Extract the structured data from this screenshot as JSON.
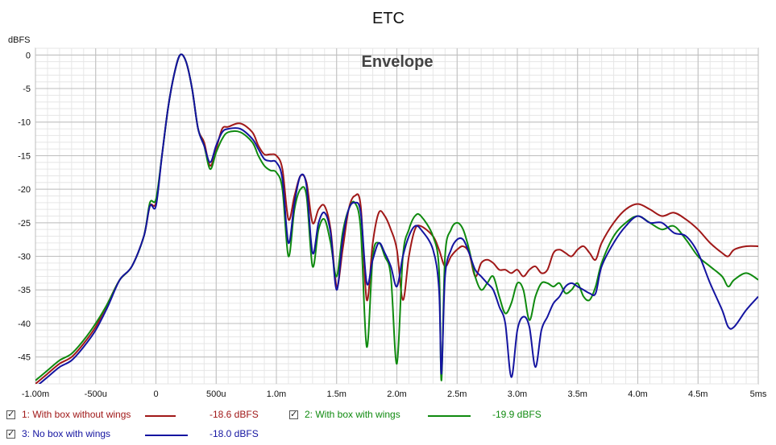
{
  "chart_data": {
    "type": "line",
    "title": "ETC",
    "annotation": "Envelope",
    "ylabel": "dBFS",
    "ylim": [
      -49,
      1
    ],
    "xlim": [
      -1.0,
      5.0
    ],
    "grid": true,
    "legend_position": "bottom",
    "x_ticks": [
      -1.0,
      -0.5,
      0,
      0.5,
      1.0,
      1.5,
      2.0,
      2.5,
      3.0,
      3.5,
      4.0,
      4.5,
      5.0
    ],
    "x_tick_labels": [
      "-1.00m",
      "-500u",
      "0",
      "500u",
      "1.0m",
      "1.5m",
      "2.0m",
      "2.5m",
      "3.0m",
      "3.5m",
      "4.0m",
      "4.5m",
      "5ms"
    ],
    "y_ticks": [
      0,
      -5,
      -10,
      -15,
      -20,
      -25,
      -30,
      -35,
      -40,
      -45
    ],
    "y_tick_labels": [
      "0",
      "-5",
      "-10",
      "-15",
      "-20",
      "-25",
      "-30",
      "-35",
      "-40",
      "-45"
    ],
    "series": [
      {
        "name": "1: With box without wings",
        "value_label": "-18.6 dBFS",
        "color": "#a01818",
        "points": [
          [
            -1.0,
            -49
          ],
          [
            -0.9,
            -47.5
          ],
          [
            -0.8,
            -46
          ],
          [
            -0.7,
            -45
          ],
          [
            -0.6,
            -43
          ],
          [
            -0.5,
            -40.5
          ],
          [
            -0.4,
            -37
          ],
          [
            -0.3,
            -33.5
          ],
          [
            -0.2,
            -31.5
          ],
          [
            -0.1,
            -27
          ],
          [
            -0.05,
            -22.5
          ],
          [
            0.0,
            -22
          ],
          [
            0.05,
            -15
          ],
          [
            0.1,
            -8
          ],
          [
            0.15,
            -3
          ],
          [
            0.2,
            0
          ],
          [
            0.25,
            -1
          ],
          [
            0.3,
            -5
          ],
          [
            0.35,
            -11
          ],
          [
            0.4,
            -13
          ],
          [
            0.45,
            -16.5
          ],
          [
            0.5,
            -14
          ],
          [
            0.55,
            -11
          ],
          [
            0.6,
            -10.7
          ],
          [
            0.7,
            -10.2
          ],
          [
            0.8,
            -11.5
          ],
          [
            0.85,
            -13.5
          ],
          [
            0.9,
            -14.8
          ],
          [
            0.95,
            -14.8
          ],
          [
            1.0,
            -15
          ],
          [
            1.05,
            -17
          ],
          [
            1.1,
            -24.5
          ],
          [
            1.15,
            -21
          ],
          [
            1.2,
            -18
          ],
          [
            1.25,
            -19
          ],
          [
            1.3,
            -25
          ],
          [
            1.35,
            -23
          ],
          [
            1.4,
            -22.5
          ],
          [
            1.45,
            -26
          ],
          [
            1.5,
            -34.5
          ],
          [
            1.55,
            -29
          ],
          [
            1.6,
            -23
          ],
          [
            1.65,
            -21
          ],
          [
            1.7,
            -22.5
          ],
          [
            1.75,
            -36.5
          ],
          [
            1.8,
            -28
          ],
          [
            1.85,
            -23.5
          ],
          [
            1.9,
            -24
          ],
          [
            1.95,
            -26
          ],
          [
            2.0,
            -29
          ],
          [
            2.05,
            -36.5
          ],
          [
            2.1,
            -30
          ],
          [
            2.15,
            -26
          ],
          [
            2.2,
            -25.5
          ],
          [
            2.3,
            -27
          ],
          [
            2.35,
            -29
          ],
          [
            2.4,
            -31.5
          ],
          [
            2.45,
            -30
          ],
          [
            2.5,
            -29
          ],
          [
            2.55,
            -28.5
          ],
          [
            2.6,
            -29.5
          ],
          [
            2.65,
            -33
          ],
          [
            2.7,
            -31
          ],
          [
            2.75,
            -30.5
          ],
          [
            2.8,
            -31
          ],
          [
            2.85,
            -32
          ],
          [
            2.9,
            -32
          ],
          [
            2.95,
            -32.5
          ],
          [
            3.0,
            -32
          ],
          [
            3.05,
            -33
          ],
          [
            3.1,
            -32
          ],
          [
            3.15,
            -31.5
          ],
          [
            3.2,
            -32.5
          ],
          [
            3.25,
            -32
          ],
          [
            3.3,
            -29.5
          ],
          [
            3.35,
            -29
          ],
          [
            3.4,
            -29.5
          ],
          [
            3.45,
            -30
          ],
          [
            3.5,
            -29
          ],
          [
            3.55,
            -28.5
          ],
          [
            3.6,
            -29.5
          ],
          [
            3.65,
            -30.5
          ],
          [
            3.7,
            -28
          ],
          [
            3.8,
            -25
          ],
          [
            3.9,
            -23
          ],
          [
            4.0,
            -22.2
          ],
          [
            4.1,
            -23
          ],
          [
            4.2,
            -24
          ],
          [
            4.3,
            -23.5
          ],
          [
            4.4,
            -24.5
          ],
          [
            4.5,
            -26
          ],
          [
            4.6,
            -28
          ],
          [
            4.7,
            -29.5
          ],
          [
            4.75,
            -30
          ],
          [
            4.8,
            -29
          ],
          [
            4.9,
            -28.5
          ],
          [
            5.0,
            -28.5
          ]
        ]
      },
      {
        "name": "2: With box with wings",
        "value_label": "-19.9 dBFS",
        "color": "#0f8a0f",
        "points": [
          [
            -1.0,
            -48.5
          ],
          [
            -0.9,
            -47
          ],
          [
            -0.8,
            -45.5
          ],
          [
            -0.7,
            -44.5
          ],
          [
            -0.6,
            -42.5
          ],
          [
            -0.5,
            -40
          ],
          [
            -0.4,
            -37
          ],
          [
            -0.3,
            -33.5
          ],
          [
            -0.2,
            -31.5
          ],
          [
            -0.1,
            -27
          ],
          [
            -0.05,
            -22
          ],
          [
            0.0,
            -21.5
          ],
          [
            0.05,
            -15
          ],
          [
            0.1,
            -8
          ],
          [
            0.15,
            -3
          ],
          [
            0.2,
            0
          ],
          [
            0.25,
            -1
          ],
          [
            0.3,
            -5
          ],
          [
            0.35,
            -11
          ],
          [
            0.4,
            -13.5
          ],
          [
            0.45,
            -17
          ],
          [
            0.5,
            -14.5
          ],
          [
            0.55,
            -12.5
          ],
          [
            0.6,
            -11.5
          ],
          [
            0.7,
            -11.5
          ],
          [
            0.8,
            -13
          ],
          [
            0.85,
            -15
          ],
          [
            0.9,
            -16.5
          ],
          [
            0.95,
            -17.2
          ],
          [
            1.0,
            -17.5
          ],
          [
            1.05,
            -20
          ],
          [
            1.1,
            -30
          ],
          [
            1.15,
            -23
          ],
          [
            1.2,
            -20
          ],
          [
            1.25,
            -21
          ],
          [
            1.3,
            -31.5
          ],
          [
            1.35,
            -26
          ],
          [
            1.4,
            -24.5
          ],
          [
            1.45,
            -28
          ],
          [
            1.5,
            -33
          ],
          [
            1.55,
            -26.5
          ],
          [
            1.6,
            -23
          ],
          [
            1.65,
            -22
          ],
          [
            1.7,
            -26
          ],
          [
            1.75,
            -43.5
          ],
          [
            1.8,
            -30
          ],
          [
            1.85,
            -28
          ],
          [
            1.9,
            -30
          ],
          [
            1.95,
            -33
          ],
          [
            2.0,
            -46
          ],
          [
            2.05,
            -30
          ],
          [
            2.1,
            -26
          ],
          [
            2.15,
            -24
          ],
          [
            2.2,
            -24
          ],
          [
            2.3,
            -27
          ],
          [
            2.35,
            -32
          ],
          [
            2.37,
            -48.5
          ],
          [
            2.4,
            -30
          ],
          [
            2.45,
            -26
          ],
          [
            2.5,
            -25
          ],
          [
            2.55,
            -26
          ],
          [
            2.6,
            -29
          ],
          [
            2.65,
            -33
          ],
          [
            2.7,
            -35
          ],
          [
            2.75,
            -34
          ],
          [
            2.8,
            -33
          ],
          [
            2.85,
            -36
          ],
          [
            2.9,
            -38.5
          ],
          [
            2.95,
            -37
          ],
          [
            3.0,
            -34
          ],
          [
            3.05,
            -35
          ],
          [
            3.1,
            -39.5
          ],
          [
            3.15,
            -36
          ],
          [
            3.2,
            -34
          ],
          [
            3.25,
            -34
          ],
          [
            3.3,
            -34.5
          ],
          [
            3.35,
            -34
          ],
          [
            3.4,
            -35.5
          ],
          [
            3.45,
            -35
          ],
          [
            3.5,
            -34
          ],
          [
            3.55,
            -36
          ],
          [
            3.6,
            -36.5
          ],
          [
            3.65,
            -34.5
          ],
          [
            3.7,
            -31
          ],
          [
            3.8,
            -27
          ],
          [
            3.9,
            -25
          ],
          [
            4.0,
            -24
          ],
          [
            4.1,
            -25
          ],
          [
            4.2,
            -26
          ],
          [
            4.3,
            -25.5
          ],
          [
            4.4,
            -27.5
          ],
          [
            4.5,
            -30
          ],
          [
            4.6,
            -31.5
          ],
          [
            4.7,
            -33
          ],
          [
            4.75,
            -34.5
          ],
          [
            4.8,
            -33.5
          ],
          [
            4.9,
            -32.5
          ],
          [
            5.0,
            -33.5
          ]
        ]
      },
      {
        "name": "3: No box with wings",
        "value_label": "-18.0 dBFS",
        "color": "#1414a0",
        "points": [
          [
            -1.0,
            -49.5
          ],
          [
            -0.9,
            -48
          ],
          [
            -0.8,
            -46.5
          ],
          [
            -0.7,
            -45.5
          ],
          [
            -0.6,
            -43.5
          ],
          [
            -0.5,
            -41
          ],
          [
            -0.4,
            -37.5
          ],
          [
            -0.3,
            -33.5
          ],
          [
            -0.2,
            -31.5
          ],
          [
            -0.1,
            -27
          ],
          [
            -0.05,
            -22.5
          ],
          [
            0.0,
            -22.5
          ],
          [
            0.05,
            -15
          ],
          [
            0.1,
            -8
          ],
          [
            0.15,
            -3
          ],
          [
            0.2,
            0
          ],
          [
            0.25,
            -1
          ],
          [
            0.3,
            -5
          ],
          [
            0.35,
            -11
          ],
          [
            0.4,
            -13.5
          ],
          [
            0.45,
            -16
          ],
          [
            0.5,
            -13.5
          ],
          [
            0.55,
            -11.5
          ],
          [
            0.6,
            -11
          ],
          [
            0.7,
            -11
          ],
          [
            0.8,
            -12.5
          ],
          [
            0.85,
            -14
          ],
          [
            0.9,
            -15.5
          ],
          [
            0.95,
            -15.8
          ],
          [
            1.0,
            -16
          ],
          [
            1.05,
            -18.5
          ],
          [
            1.1,
            -28
          ],
          [
            1.15,
            -22
          ],
          [
            1.2,
            -18
          ],
          [
            1.25,
            -19.5
          ],
          [
            1.3,
            -29.5
          ],
          [
            1.35,
            -25
          ],
          [
            1.4,
            -23.5
          ],
          [
            1.45,
            -26.5
          ],
          [
            1.5,
            -35
          ],
          [
            1.55,
            -27.5
          ],
          [
            1.6,
            -23
          ],
          [
            1.65,
            -22
          ],
          [
            1.7,
            -23.5
          ],
          [
            1.75,
            -34
          ],
          [
            1.8,
            -30.5
          ],
          [
            1.85,
            -28
          ],
          [
            1.9,
            -29.5
          ],
          [
            1.95,
            -31.5
          ],
          [
            2.0,
            -34.5
          ],
          [
            2.05,
            -30
          ],
          [
            2.1,
            -27
          ],
          [
            2.15,
            -25.5
          ],
          [
            2.2,
            -26
          ],
          [
            2.3,
            -29
          ],
          [
            2.35,
            -35
          ],
          [
            2.37,
            -47.5
          ],
          [
            2.4,
            -33
          ],
          [
            2.45,
            -29
          ],
          [
            2.5,
            -27.5
          ],
          [
            2.55,
            -27.5
          ],
          [
            2.6,
            -29.5
          ],
          [
            2.65,
            -32
          ],
          [
            2.7,
            -33
          ],
          [
            2.75,
            -34
          ],
          [
            2.8,
            -35
          ],
          [
            2.85,
            -37.5
          ],
          [
            2.9,
            -40
          ],
          [
            2.95,
            -48
          ],
          [
            3.0,
            -41
          ],
          [
            3.05,
            -39
          ],
          [
            3.1,
            -40.5
          ],
          [
            3.15,
            -46.5
          ],
          [
            3.2,
            -41
          ],
          [
            3.25,
            -39
          ],
          [
            3.3,
            -37
          ],
          [
            3.35,
            -36
          ],
          [
            3.4,
            -34.5
          ],
          [
            3.45,
            -34
          ],
          [
            3.5,
            -34.5
          ],
          [
            3.55,
            -35
          ],
          [
            3.6,
            -35.5
          ],
          [
            3.65,
            -35.5
          ],
          [
            3.7,
            -31.5
          ],
          [
            3.8,
            -28
          ],
          [
            3.9,
            -25.5
          ],
          [
            4.0,
            -24
          ],
          [
            4.1,
            -25
          ],
          [
            4.2,
            -25
          ],
          [
            4.3,
            -26.5
          ],
          [
            4.4,
            -27
          ],
          [
            4.5,
            -29.5
          ],
          [
            4.6,
            -34
          ],
          [
            4.7,
            -38
          ],
          [
            4.75,
            -40.5
          ],
          [
            4.8,
            -40.5
          ],
          [
            4.9,
            -38
          ],
          [
            5.0,
            -36
          ]
        ]
      }
    ]
  }
}
